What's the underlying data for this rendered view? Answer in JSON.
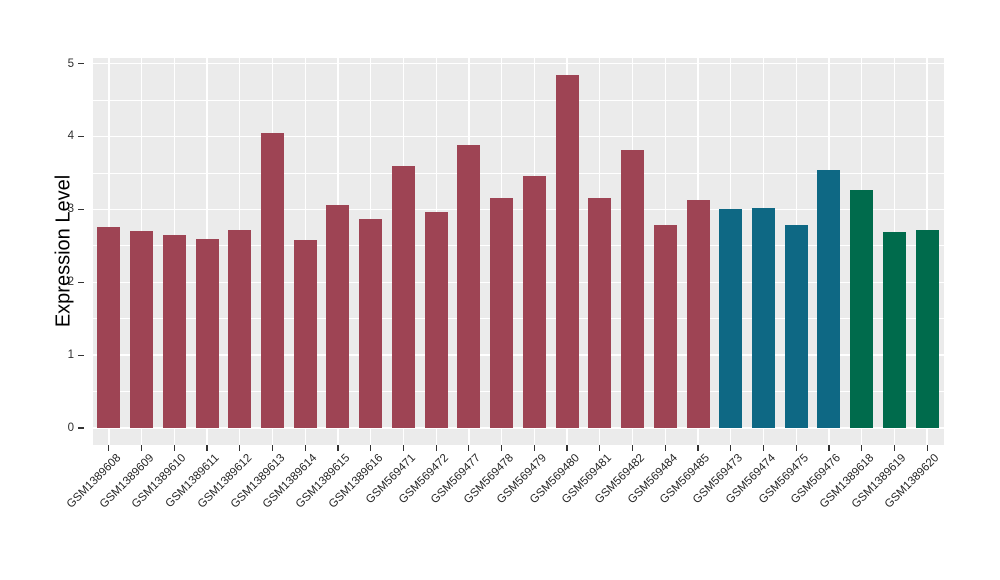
{
  "chart_data": {
    "type": "bar",
    "title": "",
    "xlabel": "",
    "ylabel": "Expression Level",
    "ylim": [
      0,
      5
    ],
    "yticks": [
      "0",
      "1",
      "2",
      "3",
      "4",
      "5"
    ],
    "grid": "horizontal major+minor, vertical major per category; white on gray panel",
    "legend_position": "none",
    "categories": [
      "GSM1389608",
      "GSM1389609",
      "GSM1389610",
      "GSM1389611",
      "GSM1389612",
      "GSM1389613",
      "GSM1389614",
      "GSM1389615",
      "GSM1389616",
      "GSM569471",
      "GSM569472",
      "GSM569477",
      "GSM569478",
      "GSM569479",
      "GSM569480",
      "GSM569481",
      "GSM569482",
      "GSM569484",
      "GSM569485",
      "GSM569473",
      "GSM569474",
      "GSM569475",
      "GSM569476",
      "GSM1389618",
      "GSM1389619",
      "GSM1389620"
    ],
    "values": [
      2.76,
      2.7,
      2.65,
      2.59,
      2.71,
      4.04,
      2.58,
      3.06,
      2.87,
      3.59,
      2.96,
      3.88,
      3.16,
      3.46,
      4.84,
      3.16,
      3.81,
      2.78,
      3.13,
      3.0,
      3.02,
      2.79,
      3.54,
      3.26,
      2.69,
      2.71
    ],
    "bar_colors": [
      "#9E4454",
      "#9E4454",
      "#9E4454",
      "#9E4454",
      "#9E4454",
      "#9E4454",
      "#9E4454",
      "#9E4454",
      "#9E4454",
      "#9E4454",
      "#9E4454",
      "#9E4454",
      "#9E4454",
      "#9E4454",
      "#9E4454",
      "#9E4454",
      "#9E4454",
      "#9E4454",
      "#9E4454",
      "#0E6884",
      "#0E6884",
      "#0E6884",
      "#0E6884",
      "#006B4C",
      "#006B4C",
      "#006B4C"
    ],
    "palette": {
      "group_maroon": "#9E4454",
      "group_teal": "#0E6884",
      "group_green": "#006B4C"
    },
    "panel_bg": "#EBEBEB",
    "grid_color": "#FFFFFF",
    "tick_color": "#333333",
    "label_color": "#262626"
  }
}
